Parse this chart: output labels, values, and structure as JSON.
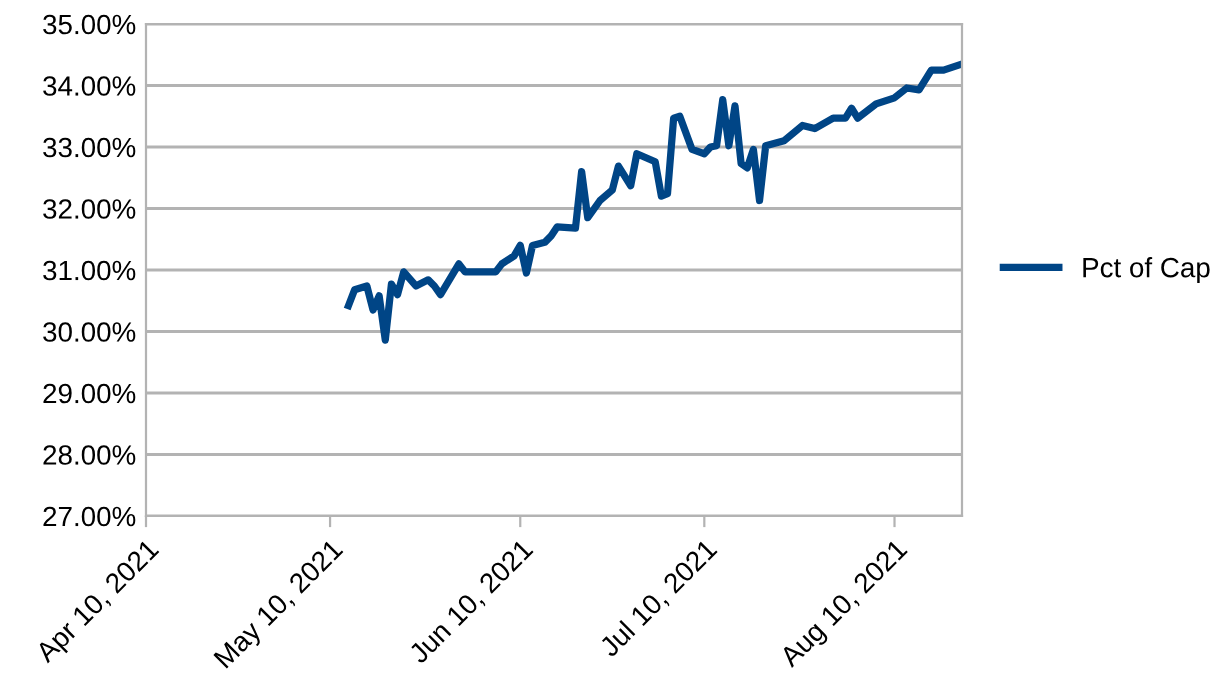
{
  "chart_data": {
    "type": "line",
    "x": [
      "2021-05-13",
      "2021-05-14",
      "2021-05-16",
      "2021-05-17",
      "2021-05-18",
      "2021-05-19",
      "2021-05-20",
      "2021-05-21",
      "2021-05-22",
      "2021-05-24",
      "2021-05-26",
      "2021-05-27",
      "2021-05-28",
      "2021-05-31",
      "2021-06-01",
      "2021-06-06",
      "2021-06-07",
      "2021-06-09",
      "2021-06-10",
      "2021-06-11",
      "2021-06-12",
      "2021-06-14",
      "2021-06-15",
      "2021-06-16",
      "2021-06-19",
      "2021-06-20",
      "2021-06-21",
      "2021-06-23",
      "2021-06-25",
      "2021-06-26",
      "2021-06-28",
      "2021-06-29",
      "2021-07-02",
      "2021-07-03",
      "2021-07-04",
      "2021-07-05",
      "2021-07-06",
      "2021-07-08",
      "2021-07-10",
      "2021-07-11",
      "2021-07-12",
      "2021-07-13",
      "2021-07-14",
      "2021-07-15",
      "2021-07-16",
      "2021-07-17",
      "2021-07-18",
      "2021-07-19",
      "2021-07-20",
      "2021-07-23",
      "2021-07-26",
      "2021-07-28",
      "2021-07-31",
      "2021-08-02",
      "2021-08-03",
      "2021-08-04",
      "2021-08-07",
      "2021-08-10",
      "2021-08-12",
      "2021-08-14",
      "2021-08-16",
      "2021-08-18",
      "2021-08-21"
    ],
    "series": [
      {
        "name": "Pct of Cap",
        "color": "#004586",
        "values": [
          30.42,
          30.68,
          30.74,
          30.35,
          30.58,
          29.86,
          30.77,
          30.6,
          30.97,
          30.74,
          30.84,
          30.74,
          30.6,
          31.1,
          30.97,
          30.97,
          31.1,
          31.23,
          31.4,
          30.95,
          31.4,
          31.45,
          31.55,
          31.7,
          31.68,
          32.6,
          31.85,
          32.13,
          32.3,
          32.69,
          32.37,
          32.89,
          32.76,
          32.2,
          32.24,
          33.47,
          33.5,
          32.96,
          32.89,
          33.0,
          33.02,
          33.77,
          33.02,
          33.67,
          32.73,
          32.66,
          32.96,
          32.13,
          33.02,
          33.1,
          33.35,
          33.3,
          33.47,
          33.47,
          33.63,
          33.47,
          33.7,
          33.8,
          33.96,
          33.93,
          34.25,
          34.25,
          34.35
        ]
      }
    ],
    "xlim": [
      "2021-04-10",
      "2021-08-21"
    ],
    "xticks": [
      {
        "value": "2021-04-10",
        "label": "Apr 10, 2021"
      },
      {
        "value": "2021-05-10",
        "label": "May 10, 2021"
      },
      {
        "value": "2021-06-10",
        "label": "Jun 10, 2021"
      },
      {
        "value": "2021-07-10",
        "label": "Jul 10, 2021"
      },
      {
        "value": "2021-08-10",
        "label": "Aug 10, 2021"
      }
    ],
    "ylim": [
      27,
      35
    ],
    "yticks": [
      {
        "value": 27,
        "label": "27.00%"
      },
      {
        "value": 28,
        "label": "28.00%"
      },
      {
        "value": 29,
        "label": "29.00%"
      },
      {
        "value": 30,
        "label": "30.00%"
      },
      {
        "value": 31,
        "label": "31.00%"
      },
      {
        "value": 32,
        "label": "32.00%"
      },
      {
        "value": 33,
        "label": "33.00%"
      },
      {
        "value": 34,
        "label": "34.00%"
      },
      {
        "value": 35,
        "label": "35.00%"
      }
    ],
    "grid": "y",
    "legend": "right",
    "line_style": "solid",
    "marker": "none"
  }
}
